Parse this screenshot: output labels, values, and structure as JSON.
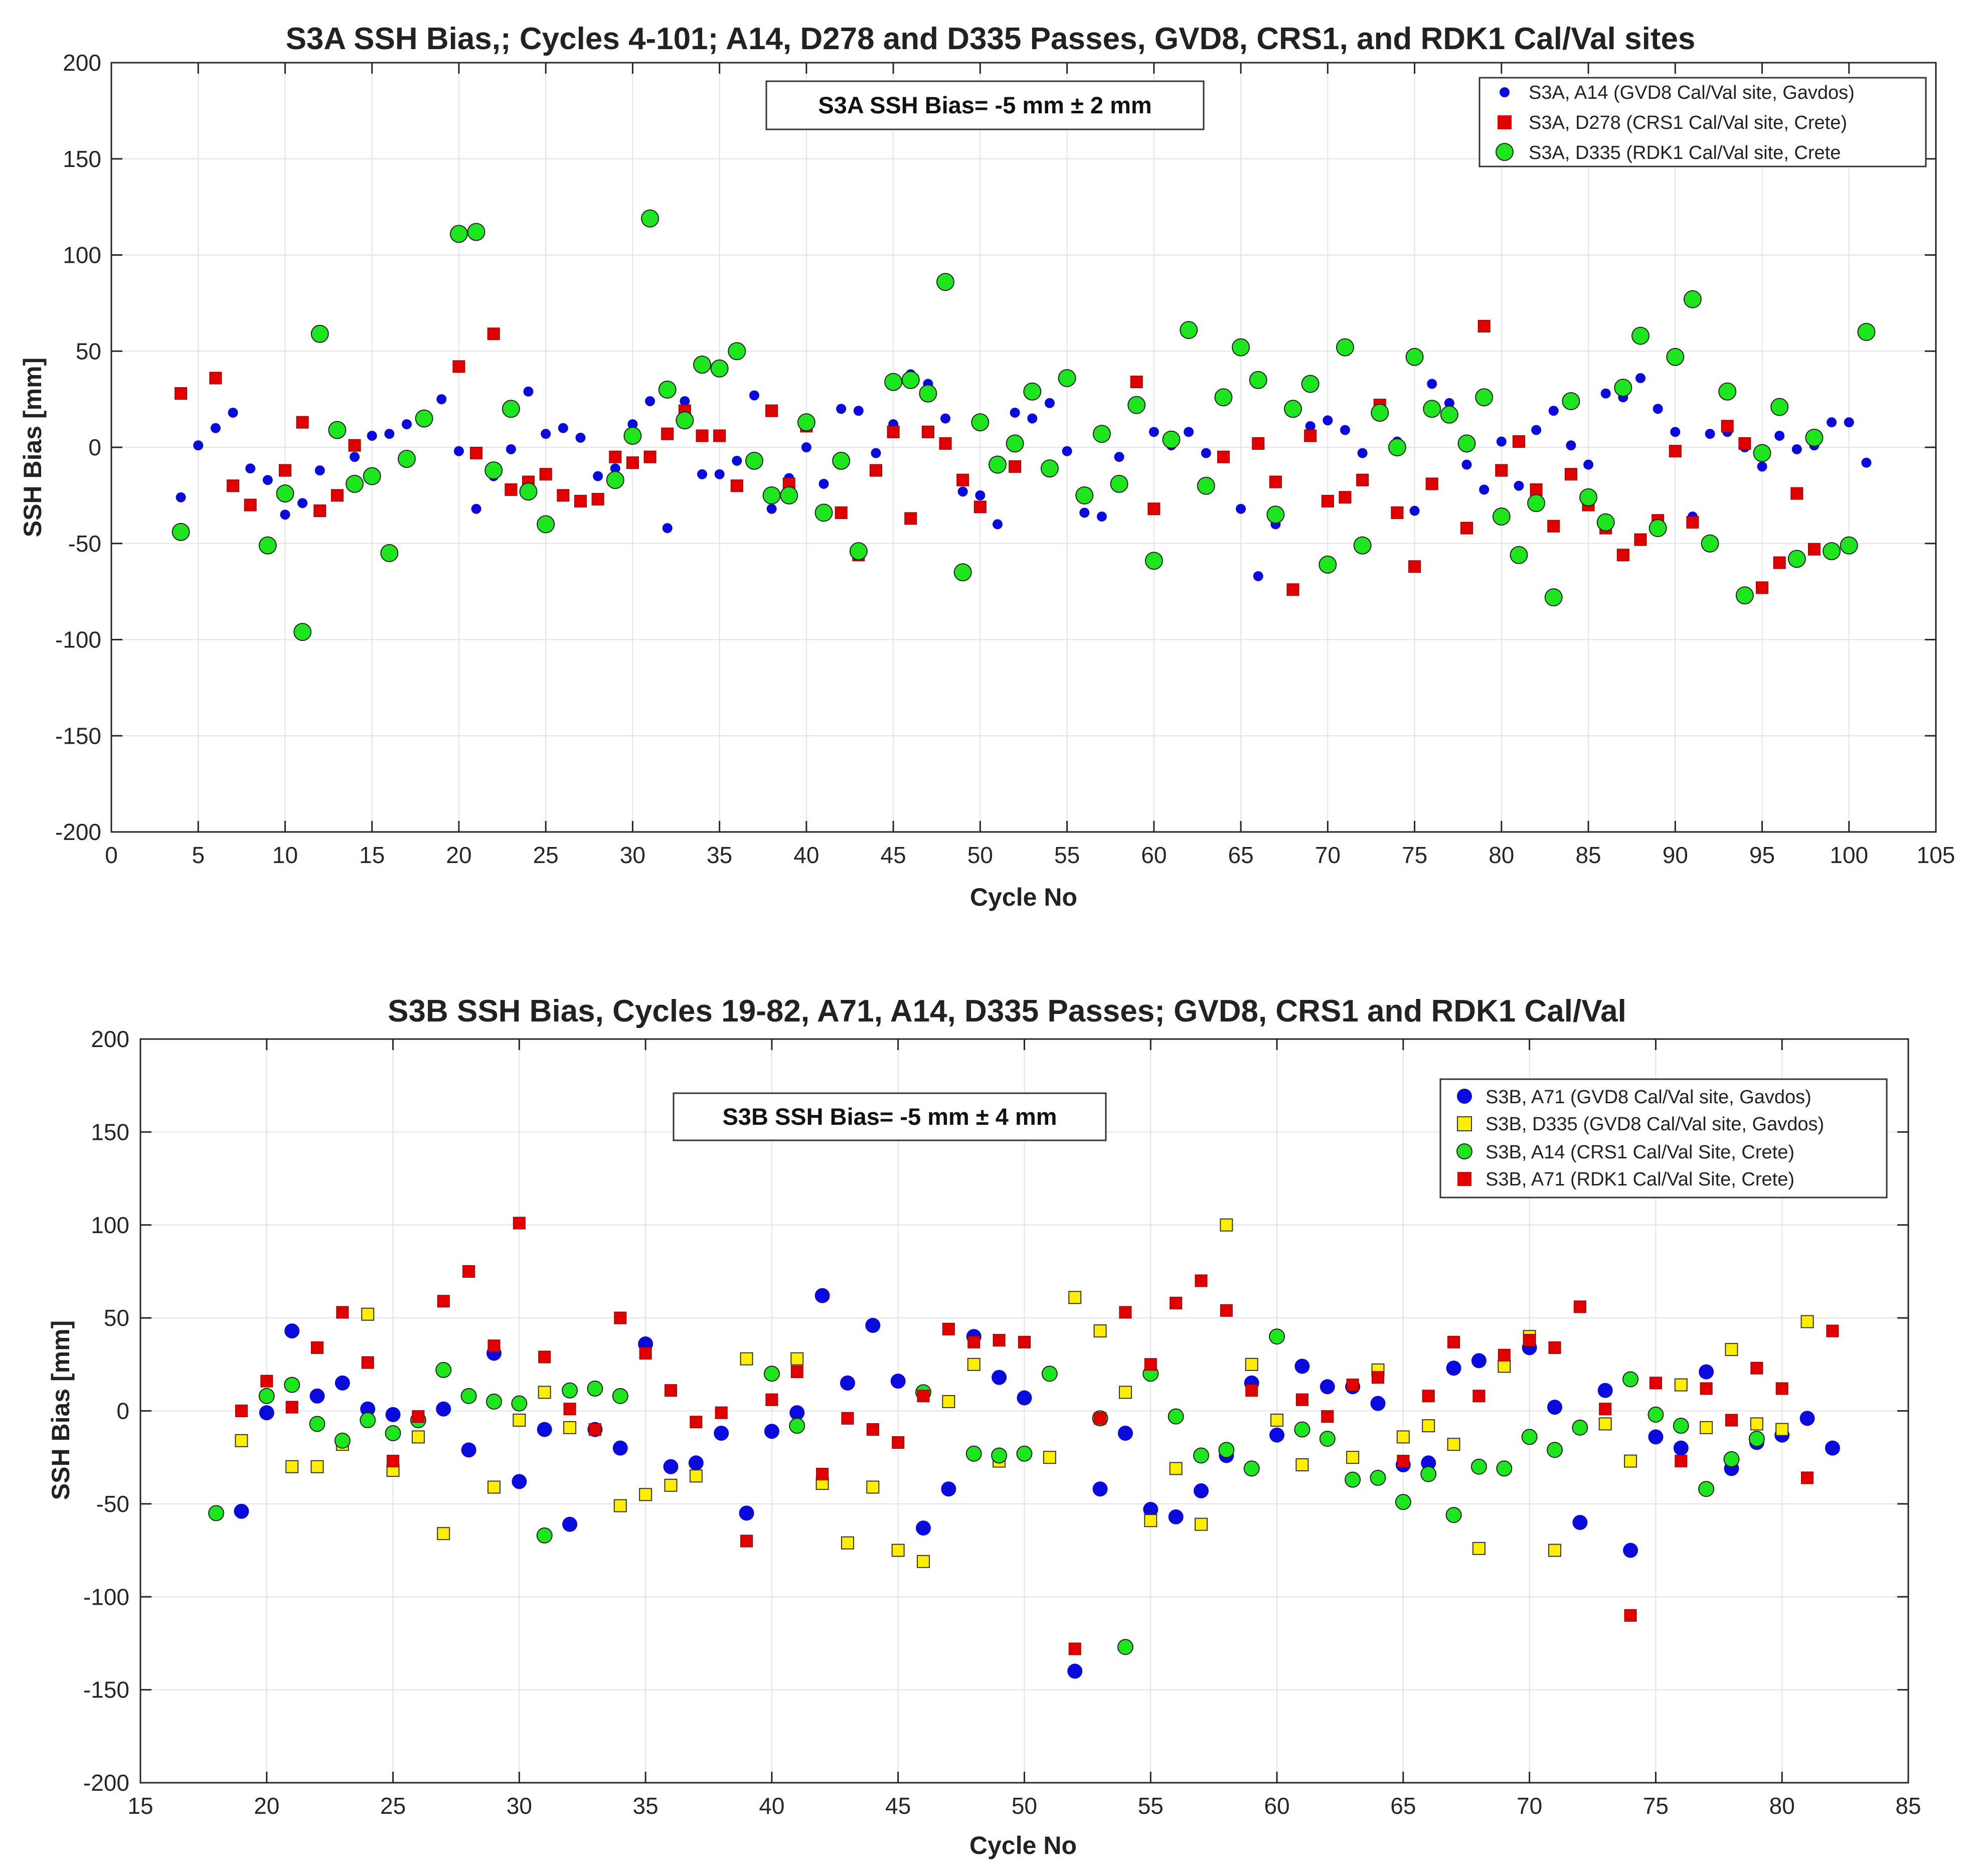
{
  "chart_data": [
    {
      "type": "scatter",
      "title": "S3A SSH Bias,; Cycles 4-101; A14, D278 and D335 Passes, GVD8, CRS1, and RDK1 Cal/Val sites",
      "xlabel": "Cycle No",
      "ylabel": "SSH Bias [mm]",
      "xlim": [
        0,
        105
      ],
      "ylim": [
        -200,
        200
      ],
      "xticks": [
        0,
        5,
        10,
        15,
        20,
        25,
        30,
        35,
        40,
        45,
        50,
        55,
        60,
        65,
        70,
        75,
        80,
        85,
        90,
        95,
        100,
        105
      ],
      "yticks": [
        -200,
        -150,
        -100,
        -50,
        0,
        50,
        100,
        150,
        200
      ],
      "grid": true,
      "legend_position": "top-right",
      "annotation": "S3A SSH Bias= -5 mm ± 2 mm",
      "series": [
        {
          "name": "S3A, A14 (GVD8 Cal/Val site, Gavdos)",
          "marker": "circle-small",
          "color": "#0a0adc",
          "x": [
            4,
            5,
            6,
            7,
            8,
            9,
            10,
            11,
            12,
            14,
            15,
            16,
            17,
            19,
            20,
            21,
            22,
            23,
            24,
            25,
            26,
            27,
            28,
            29,
            30,
            31,
            32,
            33,
            34,
            35,
            36,
            37,
            38,
            39,
            40,
            41,
            42,
            43,
            44,
            45,
            46,
            47,
            48,
            49,
            50,
            51,
            52,
            53,
            54,
            55,
            56,
            57,
            58,
            59,
            60,
            61,
            62,
            63,
            65,
            66,
            67,
            69,
            70,
            71,
            72,
            74,
            75,
            76,
            77,
            78,
            79,
            80,
            81,
            82,
            83,
            84,
            85,
            86,
            87,
            88,
            89,
            90,
            91,
            92,
            93,
            94,
            95,
            96,
            97,
            98,
            99,
            100,
            101
          ],
          "y": [
            -26,
            1,
            10,
            18,
            -11,
            -17,
            -35,
            -29,
            -12,
            -5,
            6,
            7,
            12,
            25,
            -2,
            -32,
            -15,
            -1,
            29,
            7,
            10,
            5,
            -15,
            -11,
            12,
            24,
            -42,
            24,
            -14,
            -14,
            -7,
            27,
            -32,
            -16,
            0,
            -19,
            20,
            19,
            -3,
            12,
            38,
            33,
            15,
            -23,
            -25,
            -40,
            18,
            15,
            23,
            -2,
            -34,
            -36,
            -5,
            21,
            8,
            1,
            8,
            -3,
            -32,
            -67,
            -40,
            11,
            14,
            9,
            -3,
            3,
            -33,
            33,
            23,
            -9,
            -22,
            3,
            -20,
            9,
            19,
            1,
            -9,
            28,
            26,
            36,
            20,
            8,
            -36,
            7,
            8,
            0,
            -10,
            6,
            -1,
            1,
            13,
            13,
            -8
          ]
        },
        {
          "name": "S3A, D278 (CRS1 Cal/Val site, Crete)",
          "marker": "square",
          "color": "#e00000",
          "x": [
            4,
            6,
            7,
            8,
            10,
            11,
            12,
            13,
            14,
            20,
            21,
            22,
            23,
            24,
            25,
            26,
            27,
            28,
            29,
            30,
            31,
            32,
            33,
            34,
            35,
            36,
            38,
            39,
            40,
            42,
            43,
            44,
            45,
            46,
            47,
            48,
            49,
            50,
            52,
            59,
            60,
            64,
            66,
            67,
            68,
            69,
            70,
            71,
            72,
            73,
            74,
            75,
            76,
            78,
            79,
            80,
            81,
            82,
            83,
            84,
            85,
            86,
            87,
            88,
            89,
            90,
            91,
            93,
            94,
            95,
            96,
            97,
            98
          ],
          "y": [
            28,
            36,
            -20,
            -30,
            -12,
            13,
            -33,
            -25,
            1,
            42,
            -3,
            59,
            -22,
            -18,
            -14,
            -25,
            -28,
            -27,
            -5,
            -8,
            -5,
            7,
            19,
            6,
            6,
            -20,
            19,
            -19,
            11,
            -34,
            -56,
            -12,
            8,
            -37,
            8,
            2,
            -17,
            -31,
            -10,
            34,
            -32,
            -5,
            2,
            -18,
            -74,
            6,
            -28,
            -26,
            -17,
            22,
            -34,
            -62,
            -19,
            -42,
            63,
            -12,
            3,
            -22,
            -41,
            -14,
            -30,
            -42,
            -56,
            -48,
            -38,
            -2,
            -39,
            11,
            2,
            -73,
            -60,
            -24,
            -53
          ]
        },
        {
          "name": "S3A, D335 (RDK1 Cal/Val site, Crete",
          "marker": "circle",
          "color": "#1ee61e",
          "x": [
            4,
            9,
            10,
            11,
            12,
            13,
            14,
            15,
            16,
            17,
            18,
            20,
            21,
            22,
            23,
            24,
            25,
            29,
            30,
            31,
            32,
            33,
            34,
            35,
            36,
            37,
            38,
            39,
            40,
            41,
            42,
            43,
            45,
            46,
            47,
            48,
            49,
            50,
            51,
            52,
            53,
            54,
            55,
            56,
            57,
            58,
            59,
            60,
            61,
            62,
            63,
            64,
            65,
            66,
            67,
            68,
            69,
            70,
            71,
            72,
            73,
            74,
            75,
            76,
            77,
            78,
            79,
            80,
            81,
            82,
            83,
            84,
            85,
            86,
            87,
            88,
            89,
            90,
            91,
            92,
            93,
            94,
            95,
            96,
            97,
            98,
            99,
            100,
            101
          ],
          "y": [
            -44,
            -51,
            -24,
            -96,
            59,
            9,
            -19,
            -15,
            -55,
            -6,
            15,
            111,
            112,
            -12,
            20,
            -23,
            -40,
            -17,
            6,
            119,
            30,
            14,
            43,
            41,
            50,
            -7,
            -25,
            -25,
            13,
            -34,
            -7,
            -54,
            34,
            35,
            28,
            86,
            -65,
            13,
            -9,
            2,
            29,
            -11,
            36,
            -25,
            7,
            -19,
            22,
            -59,
            4,
            61,
            -20,
            26,
            52,
            35,
            -35,
            20,
            33,
            -61,
            52,
            -51,
            18,
            0,
            47,
            20,
            17,
            2,
            26,
            -36,
            -56,
            -29,
            -78,
            24,
            -26,
            -39,
            31,
            58,
            -42,
            47,
            77,
            -50,
            29,
            -77,
            -3,
            21,
            -58,
            5,
            -54,
            -51,
            60
          ]
        }
      ]
    },
    {
      "type": "scatter",
      "title": "S3B SSH Bias, Cycles 19-82, A71, A14, D335 Passes; GVD8, CRS1 and RDK1  Cal/Val",
      "xlabel": "Cycle No",
      "ylabel": "SSH Bias [mm]",
      "xlim": [
        15,
        85
      ],
      "ylim": [
        -200,
        200
      ],
      "xticks": [
        15,
        20,
        25,
        30,
        35,
        40,
        45,
        50,
        55,
        60,
        65,
        70,
        75,
        80,
        85
      ],
      "yticks": [
        -200,
        -150,
        -100,
        -50,
        0,
        50,
        100,
        150,
        200
      ],
      "grid": true,
      "legend_position": "top-right",
      "annotation": "S3B SSH Bias= -5 mm ±  4 mm",
      "series": [
        {
          "name": "S3B, A71 (GVD8 Cal/Val site, Gavdos)",
          "marker": "circle",
          "color": "#0a0adc",
          "x": [
            19,
            20,
            21,
            22,
            23,
            24,
            25,
            27,
            28,
            29,
            30,
            31,
            32,
            33,
            34,
            35,
            36,
            37,
            38,
            39,
            40,
            41,
            42,
            43,
            44,
            45,
            46,
            47,
            48,
            49,
            50,
            52,
            53,
            54,
            55,
            56,
            57,
            58,
            59,
            60,
            61,
            62,
            63,
            64,
            65,
            66,
            67,
            68,
            70,
            71,
            72,
            73,
            74,
            75,
            76,
            77,
            78,
            79,
            80,
            81,
            82
          ],
          "y": [
            -54,
            -1,
            43,
            8,
            15,
            1,
            -2,
            1,
            -21,
            31,
            -38,
            -10,
            -61,
            -10,
            -20,
            36,
            -30,
            -28,
            -12,
            -55,
            -11,
            -1,
            62,
            15,
            46,
            16,
            -63,
            -42,
            40,
            18,
            7,
            -140,
            -42,
            -12,
            -53,
            -57,
            -43,
            -24,
            15,
            -13,
            24,
            13,
            13,
            4,
            -29,
            -28,
            23,
            27,
            34,
            2,
            -60,
            11,
            -75,
            -14,
            -20,
            21,
            -31,
            -17,
            -13,
            -4,
            -20
          ]
        },
        {
          "name": "S3B, D335 (GVD8 Cal/Val site, Gavdos)",
          "marker": "square",
          "color": "#ffee00",
          "x": [
            19,
            21,
            22,
            23,
            24,
            25,
            26,
            27,
            29,
            30,
            31,
            32,
            34,
            35,
            36,
            37,
            39,
            41,
            42,
            43,
            44,
            45,
            46,
            47,
            48,
            49,
            51,
            52,
            53,
            54,
            55,
            56,
            57,
            58,
            59,
            60,
            61,
            63,
            64,
            65,
            66,
            67,
            68,
            69,
            70,
            71,
            73,
            74,
            76,
            77,
            78,
            79,
            80,
            81
          ],
          "y": [
            -16,
            -30,
            -30,
            -18,
            52,
            -32,
            -14,
            -66,
            -41,
            -5,
            10,
            -9,
            -51,
            -45,
            -40,
            -35,
            28,
            28,
            -39,
            -71,
            -41,
            -75,
            -81,
            5,
            25,
            -27,
            -25,
            61,
            43,
            10,
            -59,
            -31,
            -61,
            100,
            25,
            -5,
            -29,
            -25,
            22,
            -14,
            -8,
            -18,
            -74,
            24,
            40,
            -75,
            -7,
            -27,
            14,
            -9,
            33,
            -7,
            -10,
            48
          ]
        },
        {
          "name": "S3B, A14 (CRS1 Cal/Val Site, Crete)",
          "marker": "circle",
          "color": "#1ee61e",
          "x": [
            18,
            20,
            21,
            22,
            23,
            24,
            25,
            26,
            27,
            28,
            29,
            30,
            31,
            32,
            33,
            34,
            40,
            41,
            46,
            48,
            49,
            50,
            51,
            53,
            54,
            55,
            56,
            57,
            58,
            59,
            60,
            61,
            62,
            63,
            64,
            65,
            66,
            67,
            68,
            69,
            70,
            71,
            72,
            74,
            75,
            76,
            77,
            78,
            79
          ],
          "y": [
            -55,
            8,
            14,
            -7,
            -16,
            -5,
            -12,
            -5,
            22,
            8,
            5,
            4,
            -67,
            11,
            12,
            8,
            20,
            -8,
            10,
            -23,
            -24,
            -23,
            20,
            -4,
            -127,
            20,
            -3,
            -24,
            -21,
            -31,
            40,
            -10,
            -15,
            -37,
            -36,
            -49,
            -34,
            -56,
            -30,
            -31,
            -14,
            -21,
            -9,
            17,
            -2,
            -8,
            -42,
            -26,
            -15
          ]
        },
        {
          "name": "S3B, A71 (RDK1 Cal/Val Site, Crete)",
          "marker": "square",
          "color": "#e00000",
          "x": [
            19,
            20,
            21,
            22,
            23,
            24,
            25,
            26,
            27,
            28,
            29,
            30,
            31,
            32,
            33,
            34,
            35,
            36,
            37,
            38,
            39,
            40,
            41,
            42,
            43,
            44,
            45,
            46,
            47,
            48,
            49,
            50,
            52,
            53,
            54,
            55,
            56,
            57,
            58,
            59,
            61,
            62,
            63,
            64,
            65,
            66,
            67,
            68,
            69,
            70,
            71,
            72,
            73,
            74,
            75,
            76,
            77,
            78,
            79,
            80,
            81,
            82
          ],
          "y": [
            0,
            16,
            2,
            34,
            53,
            26,
            -27,
            -3,
            59,
            75,
            35,
            101,
            29,
            1,
            -10,
            50,
            31,
            11,
            -6,
            -1,
            -70,
            6,
            21,
            -34,
            -4,
            -10,
            -17,
            8,
            44,
            37,
            38,
            37,
            -128,
            -4,
            53,
            25,
            58,
            70,
            54,
            11,
            6,
            -3,
            14,
            18,
            -27,
            8,
            37,
            8,
            30,
            38,
            34,
            56,
            1,
            -110,
            15,
            -27,
            12,
            -5,
            23,
            12,
            -36,
            43
          ]
        }
      ]
    }
  ]
}
